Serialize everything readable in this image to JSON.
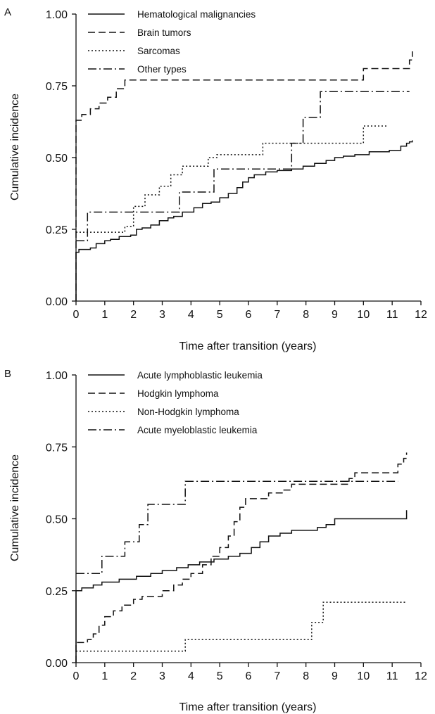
{
  "colors": {
    "ink": "#111111",
    "background": "#ffffff"
  },
  "chart_data": [
    {
      "panel_label": "A",
      "type": "line",
      "step": true,
      "xlabel": "Time after transition (years)",
      "ylabel": "Cumulative incidence",
      "xlim": [
        0,
        12
      ],
      "ylim": [
        0,
        1
      ],
      "x_ticks": [
        "0",
        "1",
        "2",
        "3",
        "4",
        "5",
        "6",
        "7",
        "8",
        "9",
        "10",
        "11",
        "12"
      ],
      "y_ticks": [
        "0.00",
        "0.25",
        "0.50",
        "0.75",
        "1.00"
      ],
      "grid": false,
      "legend_position": "top-left",
      "series": [
        {
          "name": "Hematological malignancies",
          "dash": "solid",
          "points": [
            [
              0,
              0
            ],
            [
              0,
              0.17
            ],
            [
              0.1,
              0.18
            ],
            [
              0.5,
              0.185
            ],
            [
              0.7,
              0.2
            ],
            [
              1,
              0.21
            ],
            [
              1.2,
              0.215
            ],
            [
              1.5,
              0.225
            ],
            [
              1.9,
              0.23
            ],
            [
              2.1,
              0.25
            ],
            [
              2.3,
              0.255
            ],
            [
              2.6,
              0.265
            ],
            [
              2.9,
              0.28
            ],
            [
              3.2,
              0.29
            ],
            [
              3.4,
              0.295
            ],
            [
              3.7,
              0.31
            ],
            [
              4.1,
              0.325
            ],
            [
              4.4,
              0.34
            ],
            [
              4.7,
              0.345
            ],
            [
              5.0,
              0.36
            ],
            [
              5.3,
              0.375
            ],
            [
              5.6,
              0.395
            ],
            [
              5.8,
              0.415
            ],
            [
              6.0,
              0.43
            ],
            [
              6.2,
              0.44
            ],
            [
              6.6,
              0.45
            ],
            [
              7.0,
              0.455
            ],
            [
              7.5,
              0.46
            ],
            [
              7.9,
              0.47
            ],
            [
              8.3,
              0.48
            ],
            [
              8.7,
              0.49
            ],
            [
              9.0,
              0.5
            ],
            [
              9.3,
              0.505
            ],
            [
              9.7,
              0.51
            ],
            [
              10.2,
              0.52
            ],
            [
              10.9,
              0.525
            ],
            [
              11.3,
              0.54
            ],
            [
              11.5,
              0.55
            ],
            [
              11.6,
              0.555
            ],
            [
              11.7,
              0.56
            ]
          ]
        },
        {
          "name": "Brain tumors",
          "dash": "long-dash",
          "points": [
            [
              0,
              0
            ],
            [
              0,
              0.63
            ],
            [
              0.2,
              0.65
            ],
            [
              0.5,
              0.67
            ],
            [
              0.8,
              0.69
            ],
            [
              1.1,
              0.71
            ],
            [
              1.4,
              0.74
            ],
            [
              1.7,
              0.77
            ],
            [
              10.0,
              0.77
            ],
            [
              10.0,
              0.81
            ],
            [
              11.6,
              0.81
            ],
            [
              11.6,
              0.84
            ],
            [
              11.7,
              0.87
            ]
          ]
        },
        {
          "name": "Sarcomas",
          "dash": "dotted",
          "points": [
            [
              0,
              0.24
            ],
            [
              1.7,
              0.24
            ],
            [
              1.7,
              0.26
            ],
            [
              2.0,
              0.26
            ],
            [
              2.0,
              0.33
            ],
            [
              2.4,
              0.33
            ],
            [
              2.4,
              0.37
            ],
            [
              2.9,
              0.37
            ],
            [
              2.9,
              0.4
            ],
            [
              3.3,
              0.4
            ],
            [
              3.3,
              0.44
            ],
            [
              3.7,
              0.44
            ],
            [
              3.7,
              0.47
            ],
            [
              4.6,
              0.47
            ],
            [
              4.6,
              0.5
            ],
            [
              4.9,
              0.5
            ],
            [
              4.9,
              0.51
            ],
            [
              6.5,
              0.51
            ],
            [
              6.5,
              0.55
            ],
            [
              10.0,
              0.55
            ],
            [
              10.0,
              0.61
            ],
            [
              10.8,
              0.61
            ]
          ]
        },
        {
          "name": "Other types",
          "dash": "dash-dot",
          "points": [
            [
              0,
              0.21
            ],
            [
              0.4,
              0.21
            ],
            [
              0.4,
              0.31
            ],
            [
              3.6,
              0.31
            ],
            [
              3.6,
              0.38
            ],
            [
              4.8,
              0.38
            ],
            [
              4.8,
              0.46
            ],
            [
              7.5,
              0.46
            ],
            [
              7.5,
              0.55
            ],
            [
              7.9,
              0.55
            ],
            [
              7.9,
              0.64
            ],
            [
              8.5,
              0.64
            ],
            [
              8.5,
              0.73
            ],
            [
              11.6,
              0.73
            ]
          ]
        }
      ]
    },
    {
      "panel_label": "B",
      "type": "line",
      "step": true,
      "xlabel": "Time after transition (years)",
      "ylabel": "Cumulative incidence",
      "xlim": [
        0,
        12
      ],
      "ylim": [
        0,
        1
      ],
      "x_ticks": [
        "0",
        "1",
        "2",
        "3",
        "4",
        "5",
        "6",
        "7",
        "8",
        "9",
        "10",
        "11",
        "12"
      ],
      "y_ticks": [
        "0.00",
        "0.25",
        "0.50",
        "0.75",
        "1.00"
      ],
      "grid": false,
      "legend_position": "top-left",
      "series": [
        {
          "name": "Acute lymphoblastic leukemia",
          "dash": "solid",
          "points": [
            [
              0,
              0
            ],
            [
              0,
              0.25
            ],
            [
              0.2,
              0.26
            ],
            [
              0.6,
              0.27
            ],
            [
              0.9,
              0.28
            ],
            [
              1.5,
              0.29
            ],
            [
              2.1,
              0.3
            ],
            [
              2.6,
              0.31
            ],
            [
              3.0,
              0.32
            ],
            [
              3.5,
              0.33
            ],
            [
              3.9,
              0.34
            ],
            [
              4.3,
              0.35
            ],
            [
              4.8,
              0.36
            ],
            [
              5.3,
              0.37
            ],
            [
              5.7,
              0.38
            ],
            [
              6.1,
              0.4
            ],
            [
              6.4,
              0.42
            ],
            [
              6.7,
              0.44
            ],
            [
              7.1,
              0.45
            ],
            [
              7.5,
              0.46
            ],
            [
              8.4,
              0.47
            ],
            [
              8.7,
              0.48
            ],
            [
              9.0,
              0.5
            ],
            [
              11.4,
              0.5
            ],
            [
              11.5,
              0.53
            ]
          ]
        },
        {
          "name": "Hodgkin lymphoma",
          "dash": "long-dash",
          "points": [
            [
              0,
              0
            ],
            [
              0,
              0.07
            ],
            [
              0.4,
              0.08
            ],
            [
              0.6,
              0.1
            ],
            [
              0.8,
              0.13
            ],
            [
              1.0,
              0.16
            ],
            [
              1.3,
              0.18
            ],
            [
              1.6,
              0.2
            ],
            [
              2.0,
              0.22
            ],
            [
              2.3,
              0.23
            ],
            [
              3.0,
              0.25
            ],
            [
              3.4,
              0.27
            ],
            [
              3.7,
              0.29
            ],
            [
              4.0,
              0.31
            ],
            [
              4.4,
              0.34
            ],
            [
              4.7,
              0.37
            ],
            [
              5.0,
              0.4
            ],
            [
              5.3,
              0.44
            ],
            [
              5.5,
              0.49
            ],
            [
              5.7,
              0.54
            ],
            [
              5.9,
              0.57
            ],
            [
              6.7,
              0.59
            ],
            [
              7.2,
              0.6
            ],
            [
              7.5,
              0.62
            ],
            [
              9.5,
              0.64
            ],
            [
              9.7,
              0.66
            ],
            [
              11.2,
              0.69
            ],
            [
              11.4,
              0.71
            ],
            [
              11.5,
              0.73
            ]
          ]
        },
        {
          "name": "Non-Hodgkin lymphoma",
          "dash": "dotted",
          "points": [
            [
              0,
              0.04
            ],
            [
              3.8,
              0.04
            ],
            [
              3.8,
              0.08
            ],
            [
              8.2,
              0.08
            ],
            [
              8.2,
              0.14
            ],
            [
              8.6,
              0.14
            ],
            [
              8.6,
              0.21
            ],
            [
              11.5,
              0.21
            ]
          ]
        },
        {
          "name": "Acute myeloblastic leukemia",
          "dash": "dash-dot",
          "points": [
            [
              0,
              0.31
            ],
            [
              0.9,
              0.31
            ],
            [
              0.9,
              0.37
            ],
            [
              1.7,
              0.37
            ],
            [
              1.7,
              0.42
            ],
            [
              2.2,
              0.42
            ],
            [
              2.2,
              0.48
            ],
            [
              2.5,
              0.48
            ],
            [
              2.5,
              0.55
            ],
            [
              3.8,
              0.55
            ],
            [
              3.8,
              0.63
            ],
            [
              11.2,
              0.63
            ]
          ]
        }
      ]
    }
  ]
}
